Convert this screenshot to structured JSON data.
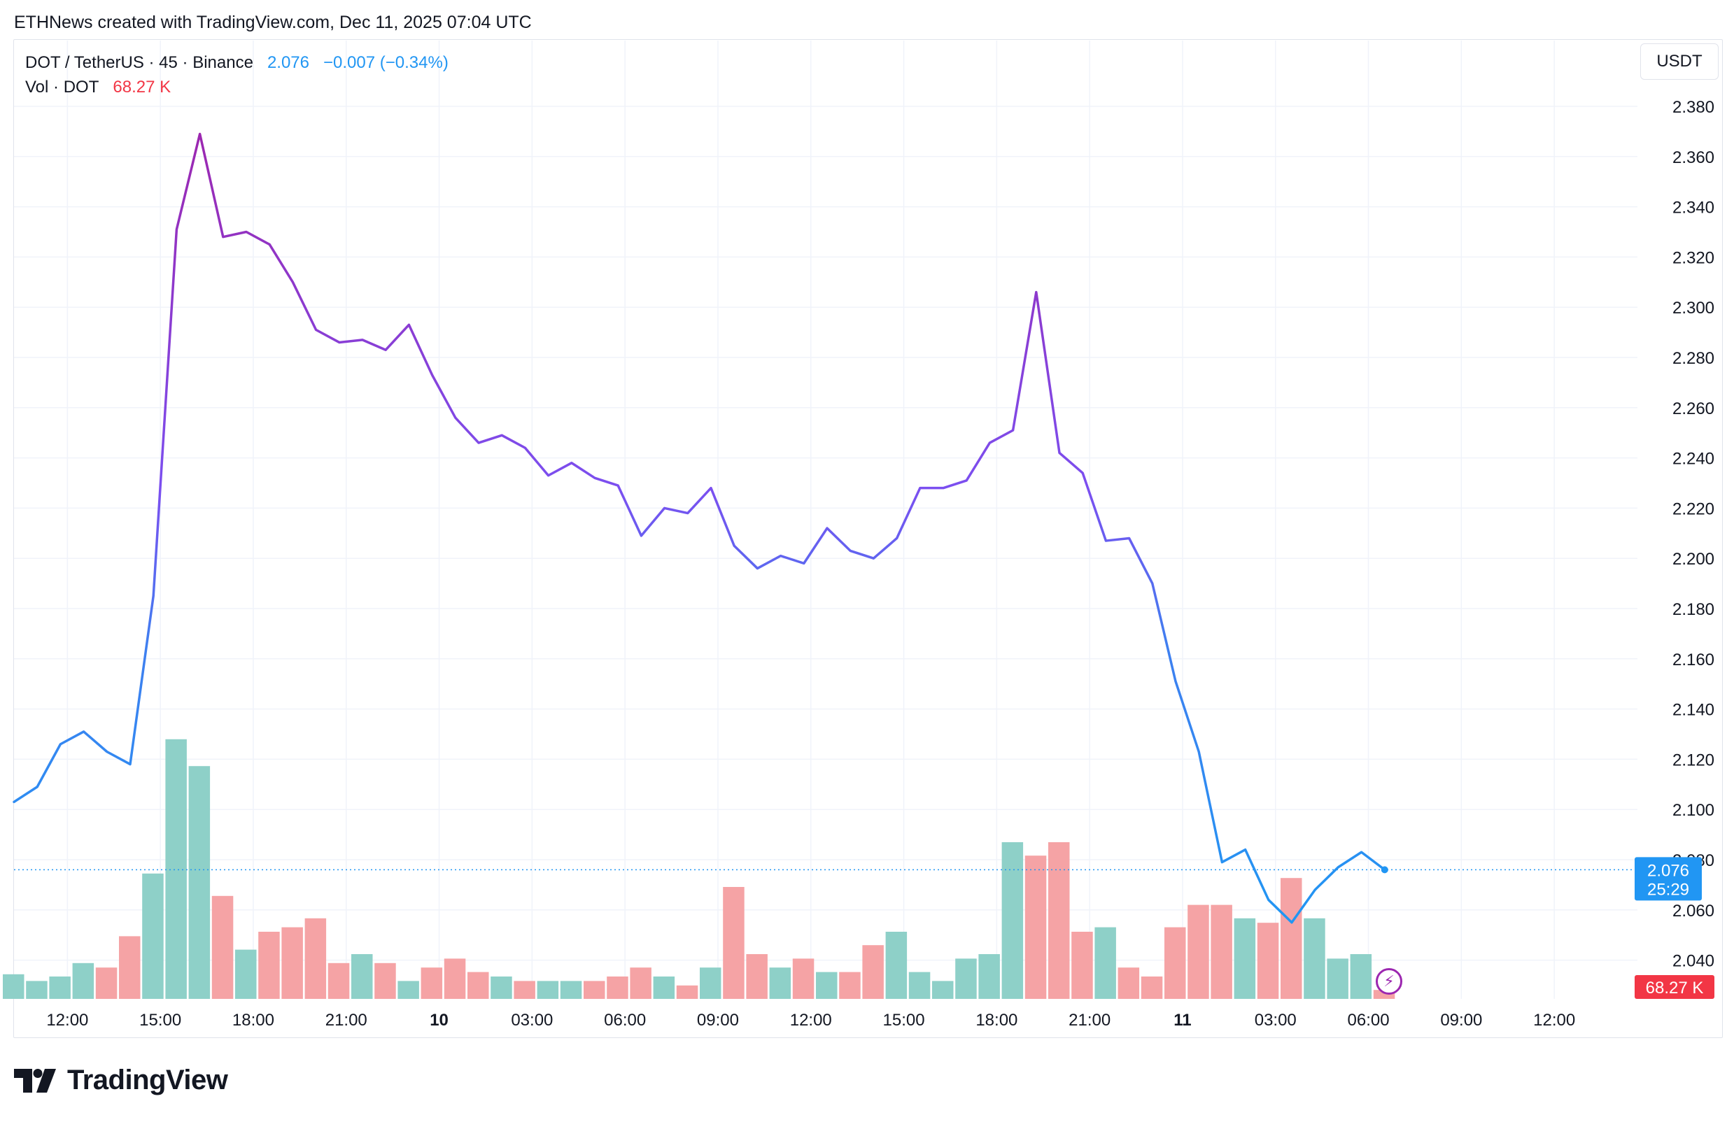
{
  "header": {
    "caption": "ETHNews created with TradingView.com, Dec 11, 2025 07:04 UTC"
  },
  "legend": {
    "symbol": "DOT / TetherUS · 45 · Binance",
    "last": "2.076",
    "change": "−0.007 (−0.34%)",
    "vol_label": "Vol · DOT",
    "vol_value": "68.27 K"
  },
  "price_axis": {
    "unit": "USDT"
  },
  "price_tag": {
    "value": "2.076",
    "countdown": "25:29"
  },
  "volume_tag": {
    "value": "68.27 K"
  },
  "brand": {
    "name": "TradingView"
  },
  "colors": {
    "line_blue": "#2196f3",
    "line_purple": "#9c27b0",
    "vol_up": "#8ed0c8",
    "vol_down": "#f5a3a5",
    "tag_blue": "#2196f3",
    "tag_red": "#f23645"
  },
  "chart_data": {
    "type": "line",
    "title": "DOT / TetherUS · 45 · Binance",
    "ylabel": "USDT",
    "ylim": [
      2.032,
      2.39
    ],
    "y_ticks": [
      "2.040",
      "2.060",
      "2.080",
      "2.100",
      "2.120",
      "2.140",
      "2.160",
      "2.180",
      "2.200",
      "2.220",
      "2.240",
      "2.260",
      "2.280",
      "2.300",
      "2.320",
      "2.340",
      "2.360",
      "2.380"
    ],
    "x_ticks": [
      {
        "label": "12:00",
        "index": 2.3,
        "bold": false
      },
      {
        "label": "15:00",
        "index": 6.3,
        "bold": false
      },
      {
        "label": "18:00",
        "index": 10.3,
        "bold": false
      },
      {
        "label": "21:00",
        "index": 14.3,
        "bold": false
      },
      {
        "label": "10",
        "index": 18.3,
        "bold": true
      },
      {
        "label": "03:00",
        "index": 22.3,
        "bold": false
      },
      {
        "label": "06:00",
        "index": 26.3,
        "bold": false
      },
      {
        "label": "09:00",
        "index": 30.3,
        "bold": false
      },
      {
        "label": "12:00",
        "index": 34.3,
        "bold": false
      },
      {
        "label": "15:00",
        "index": 38.3,
        "bold": false
      },
      {
        "label": "18:00",
        "index": 42.3,
        "bold": false
      },
      {
        "label": "21:00",
        "index": 46.3,
        "bold": false
      },
      {
        "label": "11",
        "index": 50.3,
        "bold": true
      },
      {
        "label": "03:00",
        "index": 54.3,
        "bold": false
      },
      {
        "label": "06:00",
        "index": 58.3,
        "bold": false
      },
      {
        "label": "09:00",
        "index": 62.3,
        "bold": false
      },
      {
        "label": "12:00",
        "index": 66.3,
        "bold": false
      }
    ],
    "series": [
      {
        "values": [
          2.103,
          2.109,
          2.126,
          2.131,
          2.123,
          2.118,
          2.185,
          2.331,
          2.369,
          2.328,
          2.33,
          2.325,
          2.31,
          2.291,
          2.286,
          2.287,
          2.283,
          2.293,
          2.273,
          2.256,
          2.246,
          2.249,
          2.244,
          2.233,
          2.238,
          2.232,
          2.229,
          2.209,
          2.22,
          2.218,
          2.228,
          2.205,
          2.196,
          2.201,
          2.198,
          2.212,
          2.203,
          2.2,
          2.208,
          2.228,
          2.228,
          2.231,
          2.246,
          2.251,
          2.306,
          2.242,
          2.234,
          2.207,
          2.208,
          2.19,
          2.151,
          2.123,
          2.079,
          2.084,
          2.064,
          2.055,
          2.068,
          2.077,
          2.083,
          2.076
        ]
      }
    ],
    "volume": {
      "label": "Vol · DOT",
      "values": [
        5.5,
        4,
        5,
        8,
        7,
        14,
        28,
        58,
        52,
        23,
        11,
        15,
        16,
        18,
        8,
        10,
        8,
        4,
        7,
        9,
        6,
        5,
        4,
        4,
        4,
        4,
        5,
        7,
        5,
        3,
        7,
        25,
        10,
        7,
        9,
        6,
        6,
        12,
        15,
        6,
        4,
        9,
        10,
        35,
        32,
        35,
        15,
        16,
        7,
        5,
        16,
        21,
        21,
        18,
        17,
        27,
        18,
        9,
        10,
        2
      ],
      "direction": [
        "up",
        "up",
        "up",
        "up",
        "down",
        "down",
        "up",
        "up",
        "up",
        "down",
        "up",
        "down",
        "down",
        "down",
        "down",
        "up",
        "down",
        "up",
        "down",
        "down",
        "down",
        "up",
        "down",
        "up",
        "up",
        "down",
        "down",
        "down",
        "up",
        "down",
        "up",
        "down",
        "down",
        "up",
        "down",
        "up",
        "down",
        "down",
        "up",
        "up",
        "up",
        "up",
        "up",
        "up",
        "down",
        "down",
        "down",
        "up",
        "down",
        "down",
        "down",
        "down",
        "down",
        "up",
        "down",
        "down",
        "up",
        "up",
        "up",
        "down"
      ]
    },
    "last_price": 2.076,
    "grid": true
  }
}
